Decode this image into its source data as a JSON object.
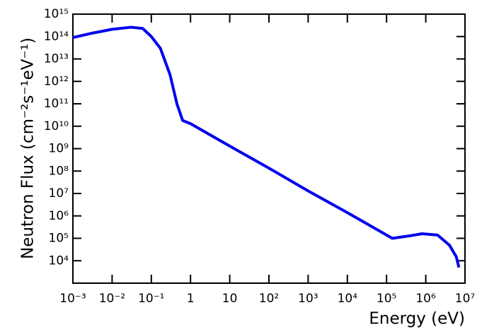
{
  "chart_data": {
    "type": "line",
    "log_x": true,
    "log_y": true,
    "xlabel": "Energy (eV)",
    "ylabel": "Neutron Flux (cm⁻²s⁻¹eV⁻¹)",
    "x": [
      0.001,
      0.003,
      0.01,
      0.03,
      0.06,
      0.1,
      0.17,
      0.3,
      0.45,
      0.63,
      1,
      10,
      100,
      1000,
      10000,
      100000,
      140000,
      400000,
      800000,
      2000000,
      4000000,
      6000000,
      7000000
    ],
    "series": [
      {
        "color": "#0000ee",
        "values": [
          90000000000000,
          140000000000000,
          210000000000000,
          260000000000000,
          230000000000000,
          100000000000000,
          30000000000000,
          2000000000000,
          100000000000,
          18000000000,
          13000000000,
          1300000000,
          135000000,
          13000000,
          1400000,
          140000,
          100000,
          130000,
          160000,
          140000,
          50000,
          15000,
          5000
        ]
      }
    ],
    "xlim": [
      0.001,
      10000000
    ],
    "xticks": [
      {
        "value": 0.001,
        "label": "10⁻³"
      },
      {
        "value": 0.01,
        "label": "10⁻²"
      },
      {
        "value": 0.1,
        "label": "10⁻¹"
      },
      1,
      10,
      {
        "value": 100,
        "label": "10²"
      },
      {
        "value": 1000,
        "label": "10³"
      },
      {
        "value": 10000,
        "label": "10⁴"
      },
      {
        "value": 100000,
        "label": "10⁵"
      },
      {
        "value": 1000000,
        "label": "10⁶"
      },
      {
        "value": 10000000,
        "label": "10⁷"
      }
    ],
    "ylim": [
      1000,
      1000000000000000
    ],
    "yticks": [
      {
        "value": 10000,
        "label": "10⁴"
      },
      {
        "value": 100000,
        "label": "10⁵"
      },
      {
        "value": 1000000,
        "label": "10⁶"
      },
      {
        "value": 10000000,
        "label": "10⁷"
      },
      {
        "value": 100000000,
        "label": "10⁸"
      },
      {
        "value": 1000000000,
        "label": "10⁹"
      },
      {
        "value": 10000000000,
        "label": "10¹⁰"
      },
      {
        "value": 100000000000,
        "label": "10¹¹"
      },
      {
        "value": 1000000000000,
        "label": "10¹²"
      },
      {
        "value": 10000000000000,
        "label": "10¹³"
      },
      {
        "value": 100000000000000,
        "label": "10¹⁴"
      },
      {
        "value": 1000000000000000,
        "label": "10¹⁵"
      }
    ]
  }
}
